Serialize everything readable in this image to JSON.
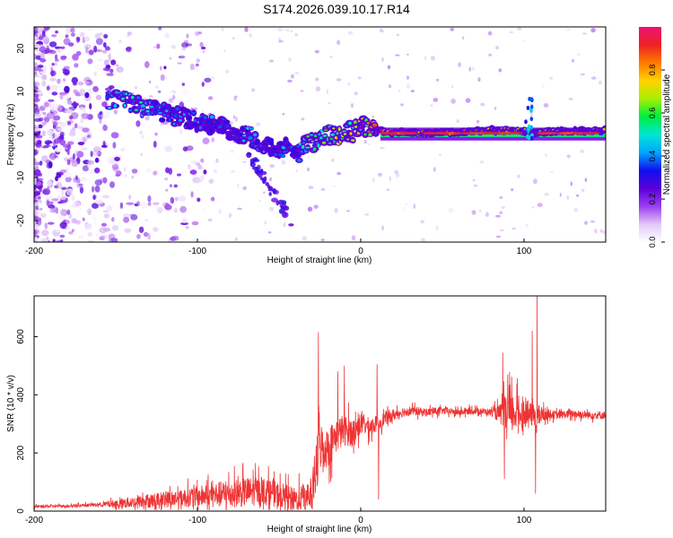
{
  "title": "S174.2026.039.10.17.R14",
  "colors": {
    "line": "#ee3333",
    "track_outer": "#2a1a6e",
    "speckle": "#8a3cf0",
    "axis": "#000000"
  },
  "chart_data": [
    {
      "type": "heatmap",
      "xlabel": "Height of straight line (km)",
      "ylabel": "Frequency (Hz)",
      "xlim": [
        -200,
        150
      ],
      "ylim": [
        -25,
        25
      ],
      "xticks": [
        -200,
        -100,
        0,
        100
      ],
      "yticks": [
        20,
        10,
        0,
        -10,
        -20
      ],
      "colorbar": {
        "label": "Normalized spectral amplitude",
        "range": [
          0,
          1
        ],
        "ticks": [
          "0.0",
          "0.2",
          "0.4",
          "0.6",
          "0.8"
        ],
        "tick_values": [
          0.0,
          0.2,
          0.4,
          0.6,
          0.8
        ],
        "colormap": [
          "#ffffff",
          "#e2c8f7",
          "#9a3cf0",
          "#5a00d8",
          "#1010ee",
          "#00a6ff",
          "#00e6d2",
          "#00ee40",
          "#aaee00",
          "#ffd200",
          "#ff7a00",
          "#ee2222",
          "#ee1177"
        ]
      },
      "track": {
        "x": [
          -155,
          -150,
          -140,
          -130,
          -120,
          -110,
          -100,
          -90,
          -80,
          -70,
          -60,
          -50,
          -45,
          -40,
          -35,
          -30,
          -25,
          -20,
          -15,
          -10,
          -5,
          0,
          5,
          10,
          15,
          40,
          80,
          100,
          105,
          150
        ],
        "freq": [
          8,
          8,
          7.5,
          6,
          5,
          4,
          3,
          2.5,
          1,
          0,
          -2,
          -4,
          -3,
          -5,
          -3,
          -2,
          -1,
          0,
          -0.5,
          1,
          0.5,
          2,
          1,
          1.5,
          0.5,
          0.3,
          1,
          0.8,
          0.5,
          1
        ],
        "amp": [
          0.45,
          0.5,
          0.55,
          0.45,
          0.4,
          0.42,
          0.35,
          0.4,
          0.35,
          0.45,
          0.4,
          0.35,
          0.45,
          0.3,
          0.5,
          0.6,
          0.55,
          0.65,
          0.7,
          0.65,
          0.7,
          0.75,
          0.8,
          0.85,
          0.95,
          0.92,
          0.85,
          0.75,
          0.7,
          0.9
        ]
      }
    },
    {
      "type": "line",
      "xlabel": "Height of straight line (km)",
      "ylabel": "SNR (10 * v/v)",
      "xlim": [
        -200,
        150
      ],
      "ylim": [
        0,
        740
      ],
      "xticks": [
        -200,
        -100,
        0,
        100
      ],
      "yticks": [
        0,
        200,
        400,
        600
      ],
      "series": [
        {
          "name": "SNR",
          "x": [
            -200,
            -180,
            -160,
            -150,
            -140,
            -130,
            -120,
            -110,
            -100,
            -90,
            -80,
            -70,
            -60,
            -50,
            -40,
            -30,
            -27,
            -25,
            -22,
            -20,
            -15,
            -10,
            -5,
            0,
            5,
            10,
            15,
            20,
            25,
            30,
            40,
            50,
            60,
            70,
            80,
            85,
            90,
            95,
            100,
            105,
            108,
            110,
            115,
            120,
            130,
            140,
            150
          ],
          "y": [
            15,
            18,
            22,
            25,
            30,
            35,
            40,
            45,
            50,
            55,
            60,
            65,
            70,
            55,
            40,
            60,
            150,
            230,
            210,
            220,
            260,
            280,
            270,
            300,
            290,
            300,
            320,
            330,
            340,
            345,
            340,
            345,
            340,
            345,
            340,
            335,
            330,
            340,
            335,
            330,
            320,
            330,
            335,
            330,
            335,
            330,
            330
          ],
          "noise": [
            6,
            6,
            8,
            20,
            25,
            30,
            35,
            40,
            45,
            55,
            60,
            65,
            60,
            55,
            50,
            70,
            130,
            110,
            80,
            90,
            75,
            70,
            60,
            50,
            40,
            35,
            30,
            25,
            22,
            20,
            18,
            16,
            15,
            15,
            15,
            40,
            100,
            80,
            60,
            50,
            60,
            40,
            20,
            18,
            18,
            18,
            18
          ]
        }
      ],
      "spikes": [
        {
          "x": -26,
          "y": 615
        },
        {
          "x": -14,
          "y": 480
        },
        {
          "x": -10,
          "y": 500
        },
        {
          "x": 10,
          "y": 505
        },
        {
          "x": 87,
          "y": 545
        },
        {
          "x": 90,
          "y": 470
        },
        {
          "x": 105,
          "y": 620
        },
        {
          "x": 108,
          "y": 740
        },
        {
          "x": 107,
          "y": 60
        },
        {
          "x": 88,
          "y": 110
        },
        {
          "x": 11,
          "y": 40
        }
      ]
    }
  ]
}
